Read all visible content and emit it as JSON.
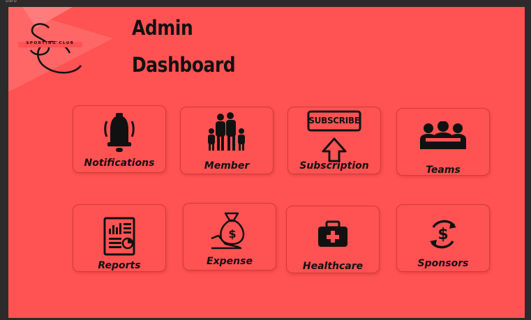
{
  "window": {
    "corner_text": "bard"
  },
  "brand": {
    "logo_text": "SPORTING CLUB",
    "monogram": "SC"
  },
  "header": {
    "title_line1": "Admin",
    "title_line2": "Dashboard"
  },
  "colors": {
    "background": "#ff5252",
    "ink": "#111111"
  },
  "cards": [
    {
      "label": "Notifications",
      "icon": "bell-icon"
    },
    {
      "label": "Member",
      "icon": "family-icon"
    },
    {
      "label": "Subscription",
      "icon": "subscribe-icon",
      "badge_text": "SUBSCRIBE"
    },
    {
      "label": "Teams",
      "icon": "team-icon"
    },
    {
      "label": "Reports",
      "icon": "report-icon"
    },
    {
      "label": "Expense",
      "icon": "money-bag-icon"
    },
    {
      "label": "Healthcare",
      "icon": "first-aid-kit-icon"
    },
    {
      "label": "Sponsors",
      "icon": "dollar-cycle-icon"
    }
  ]
}
